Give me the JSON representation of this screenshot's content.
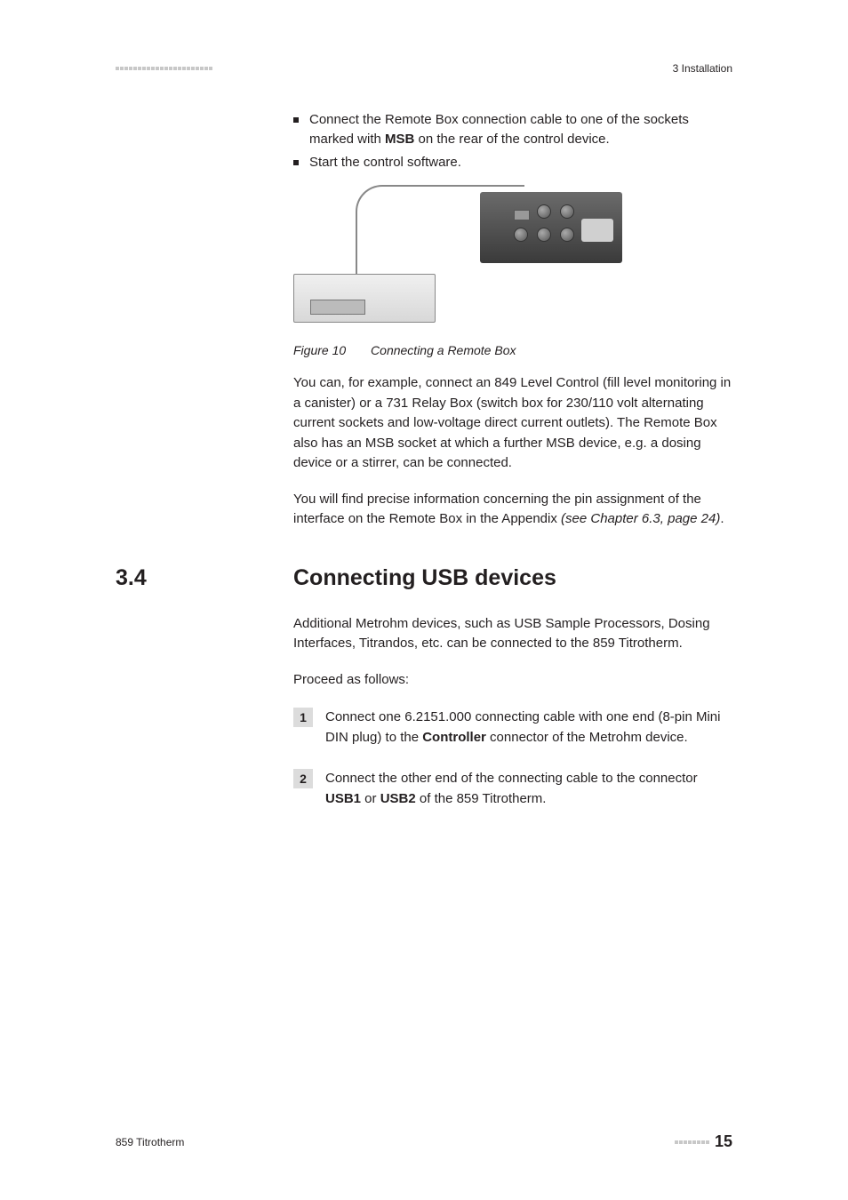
{
  "header": {
    "section_label": "3 Installation"
  },
  "bullets": [
    {
      "pre": "Connect the Remote Box connection cable to one of the sockets marked with ",
      "bold": "MSB",
      "post": " on the rear of the control device."
    },
    {
      "pre": "Start the control software.",
      "bold": "",
      "post": ""
    }
  ],
  "figure": {
    "number": "Figure 10",
    "caption": "Connecting a Remote Box"
  },
  "para1": "You can, for example, connect an 849 Level Control (fill level monitoring in a canister) or a 731 Relay Box (switch box for 230/110 volt alternating current sockets and low-voltage direct current outlets). The Remote Box also has an MSB socket at which a further MSB device, e.g. a dosing device or a stirrer, can be connected.",
  "para2_pre": "You will find precise information concerning the pin assignment of the interface on the Remote Box in the Appendix ",
  "para2_italic": "(see Chapter 6.3, page 24)",
  "para2_post": ".",
  "section": {
    "num": "3.4",
    "title": "Connecting USB devices"
  },
  "intro_para": "Additional Metrohm devices, such as USB Sample Processors, Dosing Interfaces, Titrandos, etc. can be connected to the 859 Titrotherm.",
  "proceed": "Proceed as follows:",
  "steps": [
    {
      "num": "1",
      "pre": "Connect one 6.2151.000 connecting cable with one end (8-pin Mini DIN plug) to the ",
      "b1": "Controller",
      "mid": " connector of the Metrohm device.",
      "b2": "",
      "post": ""
    },
    {
      "num": "2",
      "pre": "Connect the other end of the connecting cable to the connector ",
      "b1": "USB1",
      "mid": " or ",
      "b2": "USB2",
      "post": " of the 859 Titrotherm."
    }
  ],
  "footer": {
    "left": "859 Titrotherm",
    "page": "15"
  },
  "styling": {
    "body_fontsize": 15,
    "heading_fontsize": 25,
    "caption_fontsize": 14,
    "footer_fontsize": 12,
    "page_num_fontsize": 18,
    "text_color": "#231f20",
    "square_color": "#c8c8c8",
    "step_bg": "#dcdcdc",
    "bg": "#ffffff"
  }
}
